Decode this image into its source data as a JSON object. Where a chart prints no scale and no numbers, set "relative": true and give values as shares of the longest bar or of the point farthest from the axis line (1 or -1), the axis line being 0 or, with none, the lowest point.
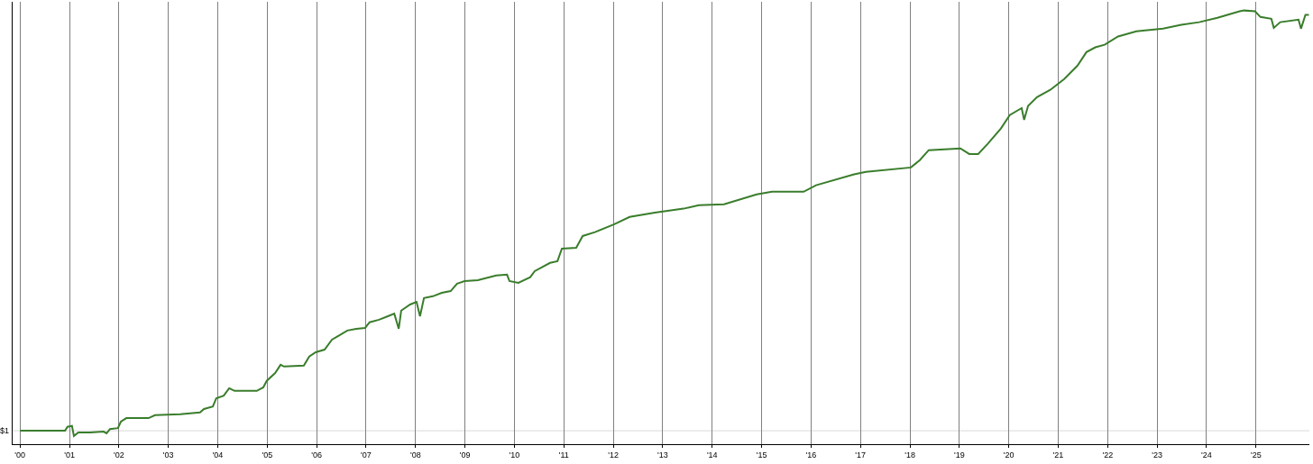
{
  "chart_data": {
    "type": "line",
    "relative": true,
    "grid": "x",
    "marker": "none",
    "line_style": "solid",
    "x": [
      2000.0,
      2000.91,
      2000.96,
      2001.05,
      2001.09,
      2001.18,
      2001.42,
      2001.69,
      2001.75,
      2001.82,
      2001.98,
      2002.04,
      2002.15,
      2002.6,
      2002.73,
      2003.24,
      2003.64,
      2003.72,
      2003.9,
      2003.97,
      2004.12,
      2004.23,
      2004.34,
      2004.79,
      2004.92,
      2004.99,
      2005.16,
      2005.27,
      2005.34,
      2005.74,
      2005.85,
      2005.98,
      2006.16,
      2006.31,
      2006.43,
      2006.62,
      2006.8,
      2006.98,
      2007.07,
      2007.26,
      2007.44,
      2007.57,
      2007.66,
      2007.71,
      2007.89,
      2008.02,
      2008.09,
      2008.17,
      2008.35,
      2008.53,
      2008.71,
      2008.84,
      2008.99,
      2009.26,
      2009.63,
      2009.85,
      2009.9,
      2010.08,
      2010.32,
      2010.41,
      2010.72,
      2010.87,
      2010.96,
      2011.25,
      2011.38,
      2011.63,
      2012.02,
      2012.33,
      2012.84,
      2013.42,
      2013.73,
      2014.24,
      2014.9,
      2015.21,
      2015.85,
      2016.1,
      2016.87,
      2017.11,
      2018.02,
      2018.2,
      2018.38,
      2019.02,
      2019.2,
      2019.38,
      2019.57,
      2019.84,
      2020.02,
      2020.26,
      2020.31,
      2020.39,
      2020.57,
      2020.84,
      2021.12,
      2021.39,
      2021.57,
      2021.75,
      2021.94,
      2022.21,
      2022.58,
      2023.12,
      2023.49,
      2023.85,
      2024.22,
      2024.67,
      2024.76,
      2024.98,
      2025.09,
      2025.31,
      2025.36,
      2025.49,
      2025.86,
      2025.91,
      2026.0,
      2026.07
    ],
    "series": [
      {
        "color": "#3a7d2c",
        "values": [
          0.031,
          0.031,
          0.04,
          0.042,
          0.019,
          0.027,
          0.027,
          0.029,
          0.025,
          0.035,
          0.037,
          0.052,
          0.06,
          0.06,
          0.067,
          0.069,
          0.073,
          0.081,
          0.087,
          0.106,
          0.112,
          0.129,
          0.123,
          0.123,
          0.131,
          0.146,
          0.164,
          0.183,
          0.179,
          0.181,
          0.202,
          0.212,
          0.218,
          0.241,
          0.249,
          0.262,
          0.266,
          0.268,
          0.281,
          0.287,
          0.295,
          0.301,
          0.266,
          0.308,
          0.322,
          0.328,
          0.295,
          0.337,
          0.341,
          0.349,
          0.353,
          0.37,
          0.376,
          0.378,
          0.389,
          0.391,
          0.376,
          0.372,
          0.385,
          0.399,
          0.418,
          0.422,
          0.451,
          0.453,
          0.48,
          0.489,
          0.507,
          0.524,
          0.534,
          0.543,
          0.551,
          0.553,
          0.576,
          0.582,
          0.582,
          0.597,
          0.622,
          0.628,
          0.638,
          0.655,
          0.678,
          0.682,
          0.669,
          0.669,
          0.692,
          0.728,
          0.759,
          0.775,
          0.748,
          0.78,
          0.8,
          0.817,
          0.842,
          0.873,
          0.904,
          0.915,
          0.921,
          0.94,
          0.952,
          0.958,
          0.967,
          0.973,
          0.983,
          0.998,
          1,
          0.998,
          0.985,
          0.981,
          0.96,
          0.973,
          0.979,
          0.958,
          0.99,
          0.99
        ]
      }
    ],
    "xlim": [
      1999.85,
      2026.08
    ],
    "xticks": [
      {
        "value": 2000,
        "label": "'00"
      },
      {
        "value": 2001,
        "label": "'01"
      },
      {
        "value": 2002,
        "label": "'02"
      },
      {
        "value": 2003,
        "label": "'03"
      },
      {
        "value": 2004,
        "label": "'04"
      },
      {
        "value": 2005,
        "label": "'05"
      },
      {
        "value": 2006,
        "label": "'06"
      },
      {
        "value": 2007,
        "label": "'07"
      },
      {
        "value": 2008,
        "label": "'08"
      },
      {
        "value": 2009,
        "label": "'09"
      },
      {
        "value": 2010,
        "label": "'10"
      },
      {
        "value": 2011,
        "label": "'11"
      },
      {
        "value": 2012,
        "label": "'12"
      },
      {
        "value": 2013,
        "label": "'13"
      },
      {
        "value": 2014,
        "label": "'14"
      },
      {
        "value": 2015,
        "label": "'15"
      },
      {
        "value": 2016,
        "label": "'16"
      },
      {
        "value": 2017,
        "label": "'17"
      },
      {
        "value": 2018,
        "label": "'18"
      },
      {
        "value": 2019,
        "label": "'19"
      },
      {
        "value": 2020,
        "label": "'20"
      },
      {
        "value": 2021,
        "label": "'21"
      },
      {
        "value": 2022,
        "label": "'22"
      },
      {
        "value": 2023,
        "label": "'23"
      },
      {
        "value": 2024,
        "label": "'24"
      },
      {
        "value": 2025,
        "label": "'25"
      }
    ],
    "ref_lines": [
      {
        "axis": "y",
        "value": 0.031,
        "color": "#d9d9d9"
      }
    ],
    "annotations": [
      "$1"
    ]
  }
}
